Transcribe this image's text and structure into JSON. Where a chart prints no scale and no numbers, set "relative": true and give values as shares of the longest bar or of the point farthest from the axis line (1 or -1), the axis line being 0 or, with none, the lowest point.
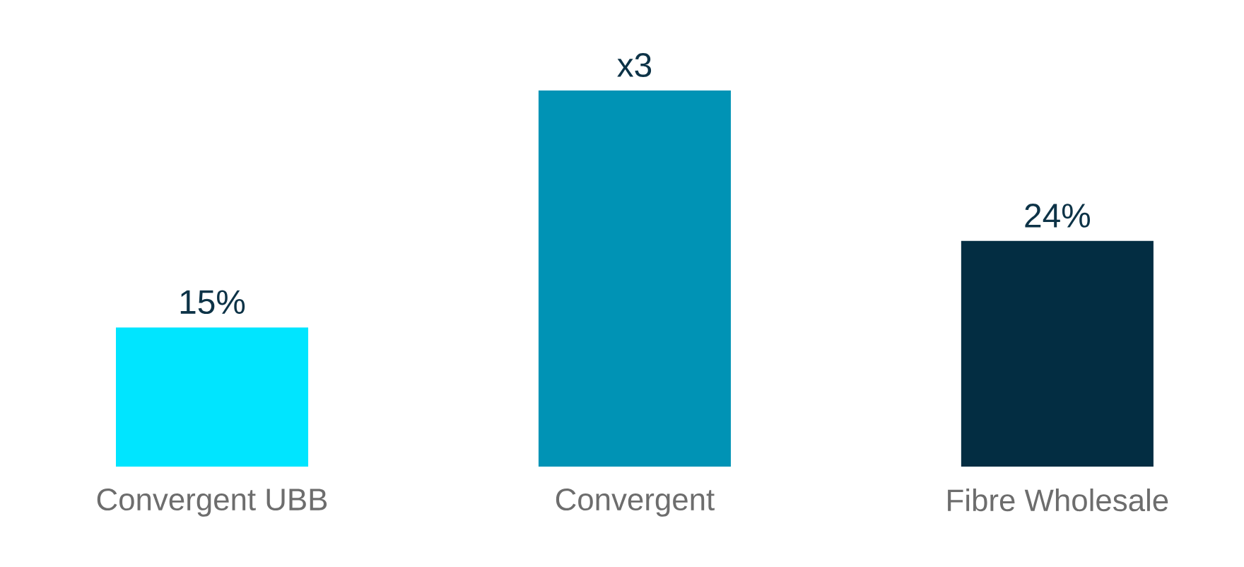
{
  "chart_data": {
    "type": "bar",
    "relative": true,
    "categories": [
      "Convergent UBB",
      "Convergent",
      "Fibre Wholesale"
    ],
    "values": [
      0.37,
      1,
      0.6
    ],
    "colors": [
      "#00e5ff",
      "#0093b5",
      "#032d42"
    ],
    "annotations": [
      {
        "text": "15%",
        "x": "Convergent UBB",
        "y": 0.37
      },
      {
        "text": "x3",
        "x": "Convergent",
        "y": 1
      },
      {
        "text": "24%",
        "x": "Fibre Wholesale",
        "y": 0.6
      }
    ]
  }
}
